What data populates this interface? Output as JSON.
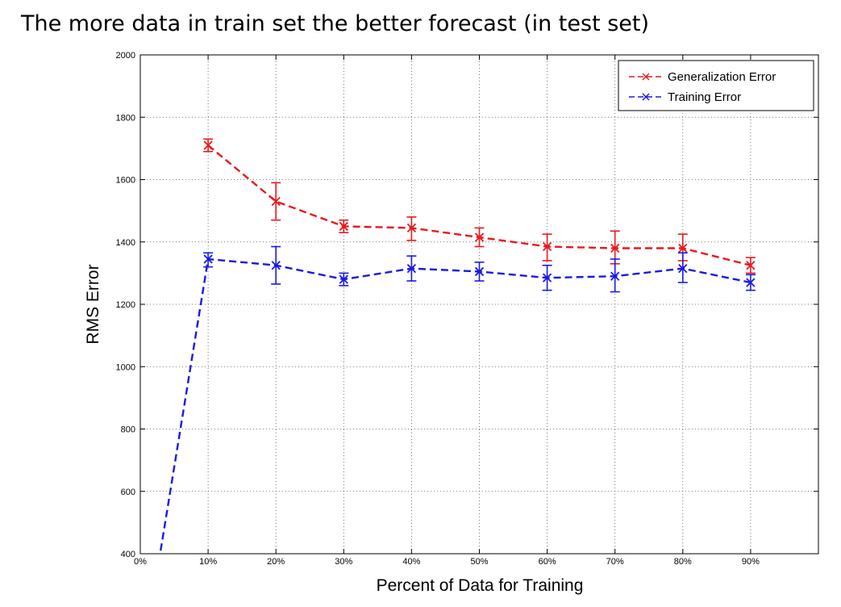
{
  "slide": {
    "title": "The more data in train set the better forecast (in test set)"
  },
  "chart_data": {
    "type": "line",
    "xlabel": "Percent of Data for Training",
    "ylabel": "RMS Error",
    "xlim": [
      0,
      100
    ],
    "ylim": [
      400,
      2000
    ],
    "x_ticks": [
      {
        "value": 0,
        "label": "0%"
      },
      {
        "value": 10,
        "label": "10%"
      },
      {
        "value": 20,
        "label": "20%"
      },
      {
        "value": 30,
        "label": "30%"
      },
      {
        "value": 40,
        "label": "40%"
      },
      {
        "value": 50,
        "label": "50%"
      },
      {
        "value": 60,
        "label": "60%"
      },
      {
        "value": 70,
        "label": "70%"
      },
      {
        "value": 80,
        "label": "80%"
      },
      {
        "value": 90,
        "label": "90%"
      }
    ],
    "y_ticks": [
      {
        "value": 400,
        "label": "400"
      },
      {
        "value": 600,
        "label": "600"
      },
      {
        "value": 800,
        "label": "800"
      },
      {
        "value": 1000,
        "label": "1000"
      },
      {
        "value": 1200,
        "label": "1200"
      },
      {
        "value": 1400,
        "label": "1400"
      },
      {
        "value": 1600,
        "label": "1600"
      },
      {
        "value": 1800,
        "label": "1800"
      },
      {
        "value": 2000,
        "label": "2000"
      }
    ],
    "grid": true,
    "legend_position": "top-right",
    "series": [
      {
        "name": "Generalization Error",
        "color": "#e8191c",
        "marker": "x",
        "line_style": "dashed",
        "points": [
          {
            "x": 10,
            "y": 1710,
            "err_low": 1690,
            "err_high": 1730
          },
          {
            "x": 20,
            "y": 1530,
            "err_low": 1470,
            "err_high": 1590
          },
          {
            "x": 30,
            "y": 1450,
            "err_low": 1430,
            "err_high": 1470
          },
          {
            "x": 40,
            "y": 1445,
            "err_low": 1405,
            "err_high": 1480
          },
          {
            "x": 50,
            "y": 1415,
            "err_low": 1385,
            "err_high": 1445
          },
          {
            "x": 60,
            "y": 1385,
            "err_low": 1340,
            "err_high": 1425
          },
          {
            "x": 70,
            "y": 1380,
            "err_low": 1330,
            "err_high": 1435
          },
          {
            "x": 80,
            "y": 1380,
            "err_low": 1340,
            "err_high": 1425
          },
          {
            "x": 90,
            "y": 1325,
            "err_low": 1300,
            "err_high": 1350
          }
        ]
      },
      {
        "name": "Training Error",
        "color": "#1a1ae6",
        "marker": "x",
        "line_style": "dashed",
        "points": [
          {
            "x": 3,
            "y": 410
          },
          {
            "x": 10,
            "y": 1345,
            "err_low": 1320,
            "err_high": 1365
          },
          {
            "x": 20,
            "y": 1325,
            "err_low": 1265,
            "err_high": 1385
          },
          {
            "x": 30,
            "y": 1280,
            "err_low": 1260,
            "err_high": 1300
          },
          {
            "x": 40,
            "y": 1315,
            "err_low": 1275,
            "err_high": 1355
          },
          {
            "x": 50,
            "y": 1305,
            "err_low": 1275,
            "err_high": 1335
          },
          {
            "x": 60,
            "y": 1285,
            "err_low": 1245,
            "err_high": 1325
          },
          {
            "x": 70,
            "y": 1290,
            "err_low": 1240,
            "err_high": 1345
          },
          {
            "x": 80,
            "y": 1315,
            "err_low": 1270,
            "err_high": 1365
          },
          {
            "x": 90,
            "y": 1270,
            "err_low": 1245,
            "err_high": 1295
          }
        ]
      }
    ]
  }
}
